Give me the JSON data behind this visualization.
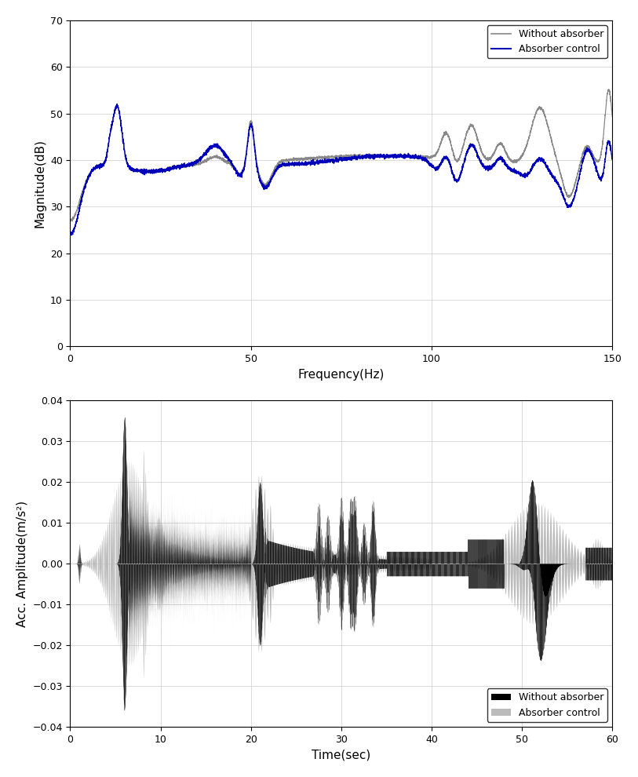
{
  "fig_width": 8.13,
  "fig_height": 9.9,
  "dpi": 100,
  "top_plot": {
    "xlabel": "Frequency(Hz)",
    "ylabel": "Magnitude(dB)",
    "xlim": [
      0,
      150
    ],
    "ylim": [
      0,
      70
    ],
    "xticks": [
      0,
      50,
      100,
      150
    ],
    "yticks": [
      0,
      10,
      20,
      30,
      40,
      50,
      60,
      70
    ],
    "legend": [
      "Without absorber",
      "Absorber control"
    ],
    "line1_color": "#888888",
    "line2_color": "#0000bb",
    "grid": true
  },
  "bottom_plot": {
    "xlabel": "Time(sec)",
    "ylabel": "Acc. Amplitude(m/s²)",
    "xlim": [
      0,
      60
    ],
    "ylim": [
      -0.04,
      0.04
    ],
    "xticks": [
      0,
      10,
      20,
      30,
      40,
      50,
      60
    ],
    "yticks": [
      -0.04,
      -0.03,
      -0.02,
      -0.01,
      0,
      0.01,
      0.02,
      0.03,
      0.04
    ],
    "legend": [
      "Without absorber",
      "Absorber control"
    ],
    "black_color": "#000000",
    "gray_color": "#bbbbbb",
    "grid": true
  }
}
